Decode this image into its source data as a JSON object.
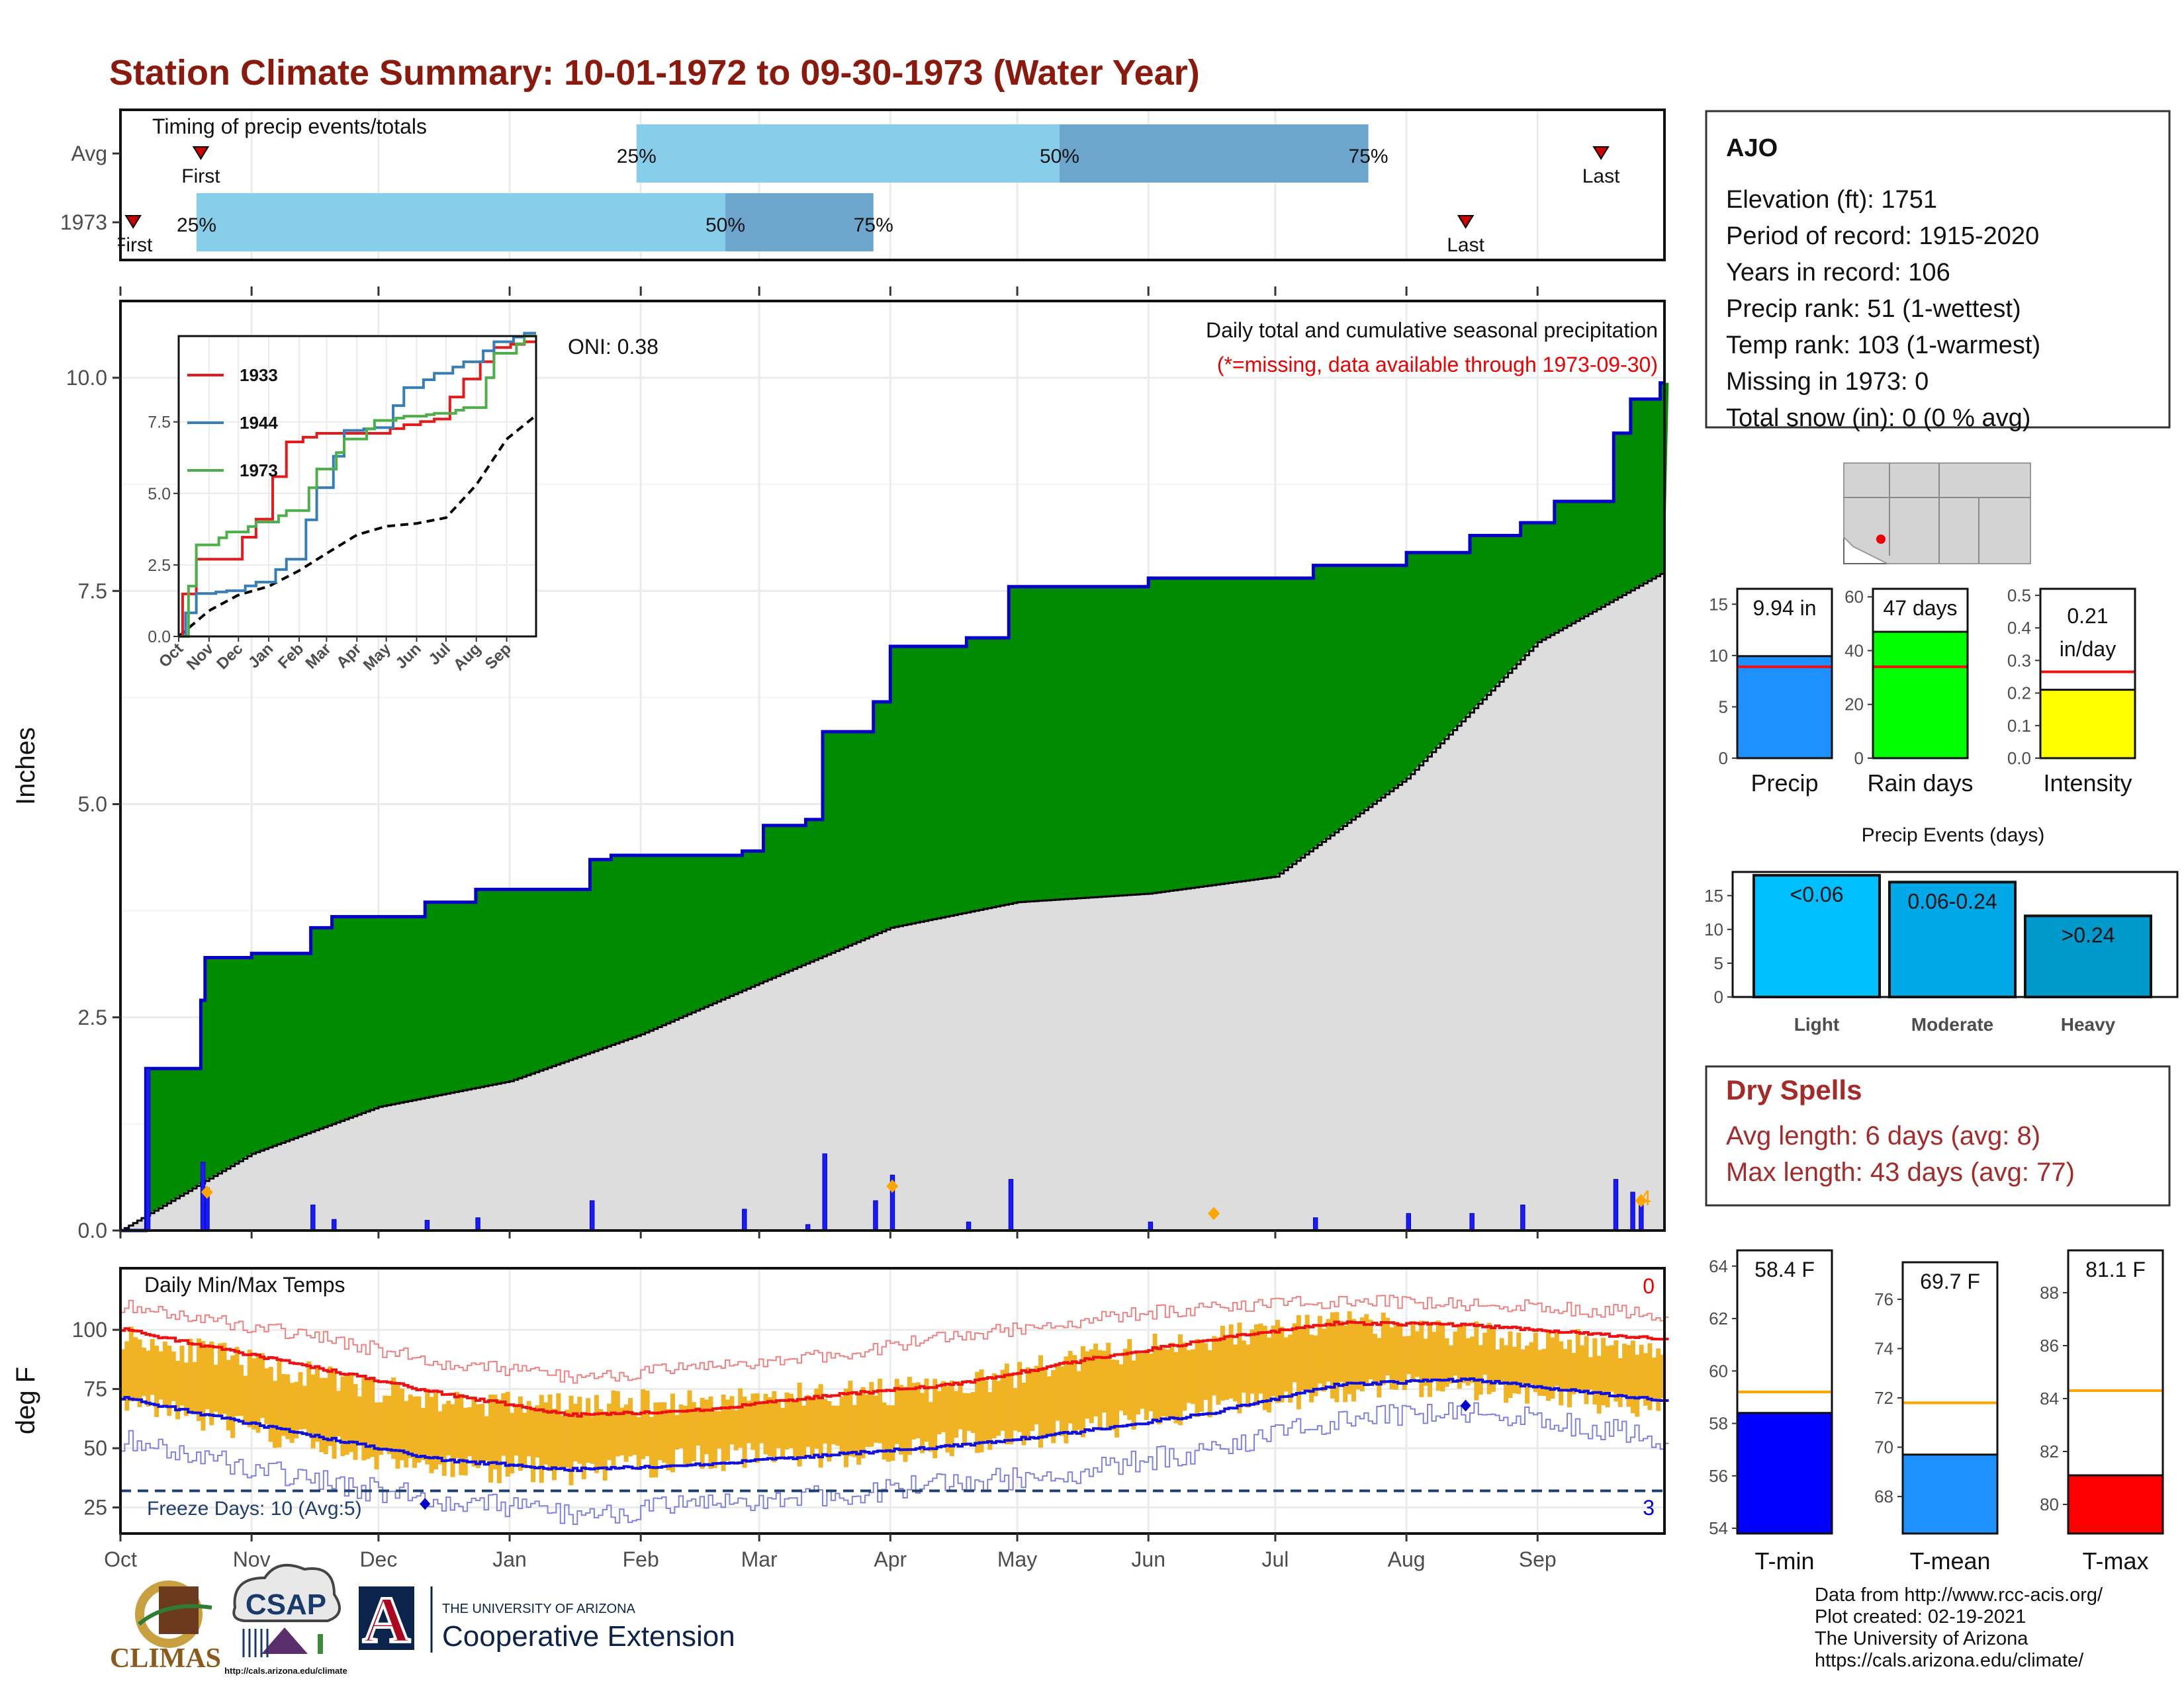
{
  "page": {
    "title": "Station Climate Summary: 10-01-1972 to 09-30-1973 (Water Year)",
    "title_color": "#8B1A0E"
  },
  "months": [
    "Oct",
    "Nov",
    "Dec",
    "Jan",
    "Feb",
    "Mar",
    "Apr",
    "May",
    "Jun",
    "Jul",
    "Aug",
    "Sep"
  ],
  "timing": {
    "label": "Timing of precip events/totals",
    "rows": [
      {
        "label": "Avg",
        "first_day": 19,
        "last_day": 350,
        "p25": 122,
        "p50": 222,
        "p75": 295,
        "first_text": "First",
        "last_text": "Last",
        "p25_text": "25%",
        "p50_text": "50%",
        "p75_text": "75%"
      },
      {
        "label": "1973",
        "first_day": 3,
        "last_day": 318,
        "p25": 18,
        "p50": 143,
        "p75": 178,
        "first_text": "First",
        "last_text": "Last",
        "p25_text": "25%",
        "p50_text": "50%",
        "p75_text": "75%"
      }
    ],
    "colors": {
      "light": "#87CEEB",
      "dark": "#6CA6CD",
      "marker": "#CC0000"
    }
  },
  "precip": {
    "ylabel": "Inches",
    "ylim": [
      0,
      10.9
    ],
    "yticks": [
      0.0,
      2.5,
      5.0,
      7.5,
      10.0
    ],
    "ytick_labels": [
      "0.0",
      "2.5",
      "5.0",
      "7.5",
      "10.0"
    ],
    "title": "Daily total and cumulative seasonal precipitation",
    "missing_note": "(*=missing, data available through 1973-09-30)",
    "oni": "ONI: 0.38",
    "count_label": "4",
    "colors": {
      "above": "#008B00",
      "normal": "#DDDDDD",
      "cum_line": "#0000CC",
      "daily": "#1A1AFF",
      "diamond": "#FFA500"
    }
  },
  "inset": {
    "yticks": [
      0.0,
      2.5,
      5.0,
      7.5
    ],
    "ytick_labels": [
      "0.0",
      "2.5",
      "5.0",
      "7.5"
    ],
    "ylim": [
      0,
      10.5
    ],
    "legend": [
      {
        "name": "1933",
        "color": "#E41A1C"
      },
      {
        "name": "1944",
        "color": "#377EB8"
      },
      {
        "name": "1973",
        "color": "#4DAF4A"
      }
    ]
  },
  "temps": {
    "label": "Daily Min/Max Temps",
    "ylabel": "deg F",
    "ylim": [
      14,
      126
    ],
    "yticks": [
      25,
      50,
      75,
      100
    ],
    "ytick_labels": [
      "25",
      "50",
      "75",
      "100"
    ],
    "freeze_label": "Freeze Days: 10 (Avg:5)",
    "freeze_line": 32,
    "top_count": "0",
    "bottom_count": "3",
    "colors": {
      "bars": "#F0B323",
      "max": "#EE1111",
      "min": "#1111DD",
      "record_max": "#F08080",
      "record_min": "#8080E0",
      "freeze": "#1F3F6F"
    }
  },
  "station": {
    "name": "AJO",
    "lines": [
      "Elevation (ft): 1751",
      "Period of record: 1915-2020",
      "Years in record: 106",
      "Precip rank: 51 (1-wettest)",
      "Temp rank: 103 (1-warmest)",
      "Missing in 1973: 0",
      "Total snow (in): 0 (0 % avg)"
    ]
  },
  "small_bars": [
    {
      "label": "Precip",
      "value_text": "9.94 in",
      "value": 9.94,
      "avg": 8.9,
      "ylim": [
        0,
        16.5
      ],
      "ticks": [
        0,
        5,
        10,
        15
      ],
      "color": "#1E90FF"
    },
    {
      "label": "Rain days",
      "value_text": "47 days",
      "value": 47,
      "avg": 34,
      "ylim": [
        0,
        63
      ],
      "ticks": [
        0,
        20,
        40,
        60
      ],
      "color": "#00FF00"
    },
    {
      "label": "Intensity",
      "value_text": "0.21 in/day",
      "value": 0.21,
      "avg": 0.265,
      "ylim": [
        0,
        0.52
      ],
      "ticks": [
        0.0,
        0.1,
        0.2,
        0.3,
        0.4,
        0.5
      ],
      "color": "#FFFF00"
    }
  ],
  "events": {
    "title": "Precip Events (days)",
    "ylim": [
      0,
      18.5
    ],
    "ticks": [
      0,
      5,
      10,
      15
    ],
    "bars": [
      {
        "label": "Light",
        "value": 18,
        "text": "<0.06",
        "color": "#00BFFF"
      },
      {
        "label": "Moderate",
        "value": 17,
        "text": "0.06-0.24",
        "color": "#00A8E8"
      },
      {
        "label": "Heavy",
        "value": 12,
        "text": ">0.24",
        "color": "#0099CC"
      }
    ]
  },
  "dry_spells": {
    "title": "Dry Spells",
    "avg_line": "Avg length: 6 days (avg: 8)",
    "max_line": "Max length: 43 days (avg: 77)",
    "color": "#A52A2A"
  },
  "temp_bars": [
    {
      "label": "T-min",
      "value_text": "58.4 F",
      "value": 58.4,
      "avg": 59.2,
      "ylim": [
        53.8,
        64.6
      ],
      "ticks": [
        54,
        56,
        58,
        60,
        62,
        64
      ],
      "color": "#0000FF"
    },
    {
      "label": "T-mean",
      "value_text": "69.7 F",
      "value": 69.7,
      "avg": 71.8,
      "ylim": [
        66.5,
        77.5
      ],
      "ticks": [
        68,
        70,
        72,
        74,
        76
      ],
      "color": "#1E90FF"
    },
    {
      "label": "T-max",
      "value_text": "81.1 F",
      "value": 81.1,
      "avg": 84.3,
      "ylim": [
        78.9,
        89.6
      ],
      "ticks": [
        80,
        82,
        84,
        86,
        88
      ],
      "color": "#FF0000"
    }
  ],
  "credits": [
    "Data from http://www.rcc-acis.org/",
    "Plot created: 02-19-2021",
    "The University of Arizona",
    "https://cals.arizona.edu/climate/"
  ],
  "logos": {
    "climas": "CLIMAS",
    "csap": "CSAP",
    "csap_url": "http://cals.arizona.edu/climate",
    "ua_letter": "A",
    "ua_line1": "THE UNIVERSITY OF ARIZONA",
    "ua_line2": "Cooperative Extension"
  },
  "chart_data": [
    {
      "type": "bar",
      "title": "Timing of precip events/totals",
      "categories": [
        "Avg",
        "1973"
      ],
      "series": [
        {
          "name": "First",
          "values": [
            "Oct 20",
            "Oct 4"
          ]
        },
        {
          "name": "25%",
          "values": [
            "Jan 31",
            "Oct 19"
          ]
        },
        {
          "name": "50%",
          "values": [
            "May 11",
            "Feb 21"
          ]
        },
        {
          "name": "75%",
          "values": [
            "Jul 23",
            "Mar 28"
          ]
        },
        {
          "name": "Last",
          "values": [
            "Sep 15",
            "Aug 15"
          ]
        }
      ]
    },
    {
      "type": "area",
      "title": "Daily total and cumulative seasonal precipitation",
      "ylabel": "Inches",
      "ylim": [
        0,
        10.9
      ],
      "cumulative_1973": [
        {
          "date": "1972-10-01",
          "value": 0.0
        },
        {
          "date": "1972-10-07",
          "value": 1.9
        },
        {
          "date": "1972-10-20",
          "value": 2.7
        },
        {
          "date": "1972-10-21",
          "value": 3.2
        },
        {
          "date": "1972-11-01",
          "value": 3.25
        },
        {
          "date": "1972-11-15",
          "value": 3.55
        },
        {
          "date": "1972-11-20",
          "value": 3.68
        },
        {
          "date": "1972-12-12",
          "value": 3.85
        },
        {
          "date": "1972-12-24",
          "value": 4.0
        },
        {
          "date": "1973-01-20",
          "value": 4.35
        },
        {
          "date": "1973-01-25",
          "value": 4.4
        },
        {
          "date": "1973-02-25",
          "value": 4.45
        },
        {
          "date": "1973-03-02",
          "value": 4.75
        },
        {
          "date": "1973-03-12",
          "value": 4.82
        },
        {
          "date": "1973-03-16",
          "value": 5.85
        },
        {
          "date": "1973-03-28",
          "value": 6.2
        },
        {
          "date": "1973-04-01",
          "value": 6.85
        },
        {
          "date": "1973-04-19",
          "value": 6.95
        },
        {
          "date": "1973-04-29",
          "value": 7.55
        },
        {
          "date": "1973-06-01",
          "value": 7.65
        },
        {
          "date": "1973-07-10",
          "value": 7.8
        },
        {
          "date": "1973-08-01",
          "value": 7.95
        },
        {
          "date": "1973-08-16",
          "value": 8.15
        },
        {
          "date": "1973-08-28",
          "value": 8.3
        },
        {
          "date": "1973-09-05",
          "value": 8.55
        },
        {
          "date": "1973-09-19",
          "value": 9.35
        },
        {
          "date": "1973-09-23",
          "value": 9.75
        },
        {
          "date": "1973-09-30",
          "value": 9.94
        }
      ],
      "normal_cumulative": [
        {
          "date": "1972-10-01",
          "value": 0.0
        },
        {
          "date": "1972-11-01",
          "value": 0.9
        },
        {
          "date": "1972-12-01",
          "value": 1.45
        },
        {
          "date": "1973-01-01",
          "value": 1.75
        },
        {
          "date": "1973-02-01",
          "value": 2.3
        },
        {
          "date": "1973-03-01",
          "value": 2.9
        },
        {
          "date": "1973-04-01",
          "value": 3.55
        },
        {
          "date": "1973-05-01",
          "value": 3.85
        },
        {
          "date": "1973-06-01",
          "value": 3.95
        },
        {
          "date": "1973-07-01",
          "value": 4.15
        },
        {
          "date": "1973-08-01",
          "value": 5.3
        },
        {
          "date": "1973-09-01",
          "value": 6.9
        },
        {
          "date": "1973-09-30",
          "value": 7.7
        }
      ],
      "daily": [
        {
          "date": "1972-10-07",
          "value": 1.9
        },
        {
          "date": "1972-10-20",
          "value": 0.8
        },
        {
          "date": "1972-10-21",
          "value": 0.5
        },
        {
          "date": "1972-11-15",
          "value": 0.3
        },
        {
          "date": "1972-11-20",
          "value": 0.13
        },
        {
          "date": "1972-12-12",
          "value": 0.12
        },
        {
          "date": "1972-12-24",
          "value": 0.15
        },
        {
          "date": "1973-01-20",
          "value": 0.35
        },
        {
          "date": "1973-02-25",
          "value": 0.25
        },
        {
          "date": "1973-03-12",
          "value": 0.07
        },
        {
          "date": "1973-03-16",
          "value": 0.9
        },
        {
          "date": "1973-03-28",
          "value": 0.35
        },
        {
          "date": "1973-04-01",
          "value": 0.65
        },
        {
          "date": "1973-04-19",
          "value": 0.1
        },
        {
          "date": "1973-04-29",
          "value": 0.6
        },
        {
          "date": "1973-06-01",
          "value": 0.1
        },
        {
          "date": "1973-07-10",
          "value": 0.15
        },
        {
          "date": "1973-08-01",
          "value": 0.2
        },
        {
          "date": "1973-08-16",
          "value": 0.2
        },
        {
          "date": "1973-08-28",
          "value": 0.3
        },
        {
          "date": "1973-09-19",
          "value": 0.6
        },
        {
          "date": "1973-09-23",
          "value": 0.45
        },
        {
          "date": "1973-09-25",
          "value": 0.35
        }
      ],
      "markers": [
        {
          "date": "1972-10-21",
          "value": 0.45
        },
        {
          "date": "1973-04-01",
          "value": 0.52
        },
        {
          "date": "1973-06-16",
          "value": 0.2
        },
        {
          "date": "1973-09-25",
          "value": 0.35
        }
      ]
    },
    {
      "type": "line",
      "title": "",
      "x": [
        "Oct",
        "Nov",
        "Dec",
        "Jan",
        "Feb",
        "Mar",
        "Apr",
        "May",
        "Jun",
        "Jul",
        "Aug",
        "Sep"
      ],
      "ylim": [
        0,
        10.5
      ],
      "series": [
        {
          "name": "1933",
          "values": [
            2.7,
            2.7,
            4.1,
            6.8,
            7.1,
            7.1,
            7.1,
            7.4,
            7.6,
            9.0,
            10.1,
            10.3
          ]
        },
        {
          "name": "1944",
          "values": [
            1.5,
            1.6,
            1.9,
            2.7,
            5.2,
            7.2,
            7.3,
            8.7,
            9.2,
            9.6,
            10.3,
            10.6
          ]
        },
        {
          "name": "1973",
          "values": [
            3.2,
            3.65,
            4.0,
            4.4,
            5.85,
            6.9,
            7.55,
            7.7,
            7.8,
            8.0,
            9.9,
            10.5
          ]
        }
      ]
    },
    {
      "type": "line",
      "title": "Daily Min/Max Temps",
      "ylabel": "deg F",
      "x": [
        "Oct",
        "Nov",
        "Dec",
        "Jan",
        "Feb",
        "Mar",
        "Apr",
        "May",
        "Jun",
        "Jul",
        "Aug",
        "Sep"
      ],
      "ylim": [
        14,
        126
      ],
      "series": [
        {
          "name": "avg max",
          "values": [
            95,
            84,
            73,
            64,
            66,
            72,
            77,
            87,
            96,
            103,
            102,
            98
          ]
        },
        {
          "name": "avg min",
          "values": [
            66,
            55,
            45,
            41,
            43,
            47,
            51,
            57,
            65,
            77,
            79,
            73
          ]
        },
        {
          "name": "record max",
          "values": [
            106,
            97,
            86,
            80,
            84,
            89,
            97,
            104,
            110,
            112,
            111,
            108
          ]
        },
        {
          "name": "record min",
          "values": [
            48,
            36,
            28,
            22,
            26,
            30,
            35,
            40,
            50,
            62,
            66,
            58
          ]
        },
        {
          "name": "1973 max",
          "values": [
            92,
            80,
            70,
            68,
            70,
            73,
            75,
            88,
            97,
            103,
            98,
            94
          ]
        },
        {
          "name": "1973 min",
          "values": [
            65,
            51,
            42,
            40,
            46,
            47,
            52,
            58,
            67,
            75,
            76,
            70
          ]
        }
      ]
    },
    {
      "type": "bar",
      "title": "Precip Events (days)",
      "categories": [
        "Light",
        "Moderate",
        "Heavy"
      ],
      "values": [
        18,
        17,
        12
      ]
    }
  ]
}
